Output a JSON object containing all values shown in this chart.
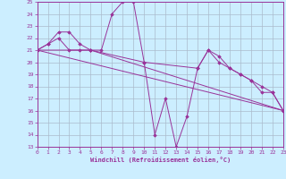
{
  "xlabel": "Windchill (Refroidissement éolien,°C)",
  "bg_color": "#cceeff",
  "line_color": "#993399",
  "grid_color": "#aabbcc",
  "ylim": [
    13,
    25
  ],
  "xlim": [
    0,
    23
  ],
  "yticks": [
    13,
    14,
    15,
    16,
    17,
    18,
    19,
    20,
    21,
    22,
    23,
    24,
    25
  ],
  "xticks": [
    0,
    1,
    2,
    3,
    4,
    5,
    6,
    7,
    8,
    9,
    10,
    11,
    12,
    13,
    14,
    15,
    16,
    17,
    18,
    19,
    20,
    21,
    22,
    23
  ],
  "series": [
    {
      "x": [
        0,
        1,
        2,
        3,
        4,
        5,
        6,
        7,
        8,
        9,
        10,
        11,
        12,
        13,
        14,
        15,
        16,
        17,
        18,
        19,
        20,
        21,
        22,
        23
      ],
      "y": [
        21.0,
        21.5,
        22.0,
        21.0,
        21.0,
        21.0,
        21.0,
        24.0,
        25.0,
        25.0,
        20.0,
        14.0,
        17.0,
        13.0,
        15.5,
        19.5,
        21.0,
        20.5,
        19.5,
        19.0,
        18.5,
        17.5,
        17.5,
        16.0
      ]
    },
    {
      "x": [
        0,
        1,
        2,
        3,
        4,
        5,
        23
      ],
      "y": [
        21.0,
        21.5,
        22.5,
        22.5,
        21.5,
        21.0,
        16.0
      ]
    },
    {
      "x": [
        0,
        5,
        10,
        15,
        16,
        17,
        18,
        19,
        20,
        21,
        22,
        23
      ],
      "y": [
        21.0,
        21.0,
        20.0,
        19.5,
        21.0,
        20.0,
        19.5,
        19.0,
        18.5,
        18.0,
        17.5,
        16.0
      ]
    },
    {
      "x": [
        0,
        23
      ],
      "y": [
        21.0,
        16.0
      ]
    }
  ]
}
